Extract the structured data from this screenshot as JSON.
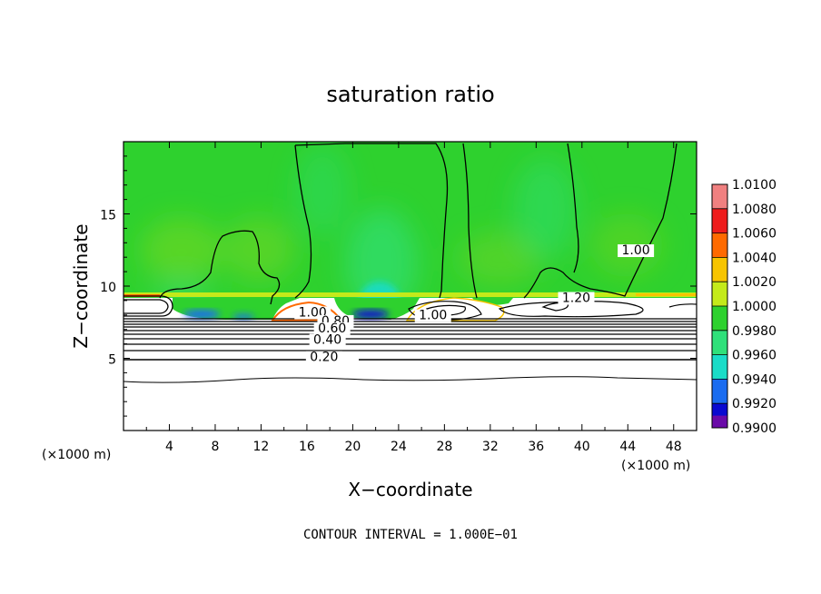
{
  "chart_data": {
    "type": "heatmap",
    "title": "saturation ratio",
    "xlabel": "X−coordinate",
    "ylabel": "Z−coordinate",
    "x_unit": "(×1000 m)",
    "z_unit": "(×1000 m)",
    "xlim": [
      0,
      50
    ],
    "ylim": [
      0,
      20
    ],
    "x_ticks": [
      4,
      8,
      12,
      16,
      20,
      24,
      28,
      32,
      36,
      40,
      44,
      48
    ],
    "y_ticks": [
      5,
      10,
      15
    ],
    "colorbar": {
      "levels": [
        "1.0100",
        "1.0080",
        "1.0060",
        "1.0040",
        "1.0020",
        "1.0000",
        "0.9980",
        "0.9960",
        "0.9940",
        "0.9920",
        "0.9900"
      ],
      "colors": [
        "#f08080",
        "#ee1c1c",
        "#ff6a00",
        "#f7c400",
        "#c4ea1a",
        "#2ed12e",
        "#2fe07a",
        "#1adcc8",
        "#1a6cf0",
        "#0a0ad0",
        "#6a0aa8"
      ]
    },
    "contour_labels": [
      {
        "text": "1.00",
        "x": 16.5,
        "z": 7.9
      },
      {
        "text": "0.80",
        "x": 18.5,
        "z": 7.3
      },
      {
        "text": "0.60",
        "x": 18.2,
        "z": 6.8
      },
      {
        "text": "0.40",
        "x": 17.8,
        "z": 6.0
      },
      {
        "text": "0.20",
        "x": 17.5,
        "z": 4.8
      },
      {
        "text": "1.00",
        "x": 27.0,
        "z": 7.7
      },
      {
        "text": "1.20",
        "x": 39.5,
        "z": 8.9
      },
      {
        "text": "1.00",
        "x": 44.7,
        "z": 12.2
      }
    ],
    "contour_levels_below": [
      0.2,
      0.4,
      0.6,
      0.8,
      1.0
    ],
    "footer": "CONTOUR INTERVAL = 1.000E−01"
  }
}
